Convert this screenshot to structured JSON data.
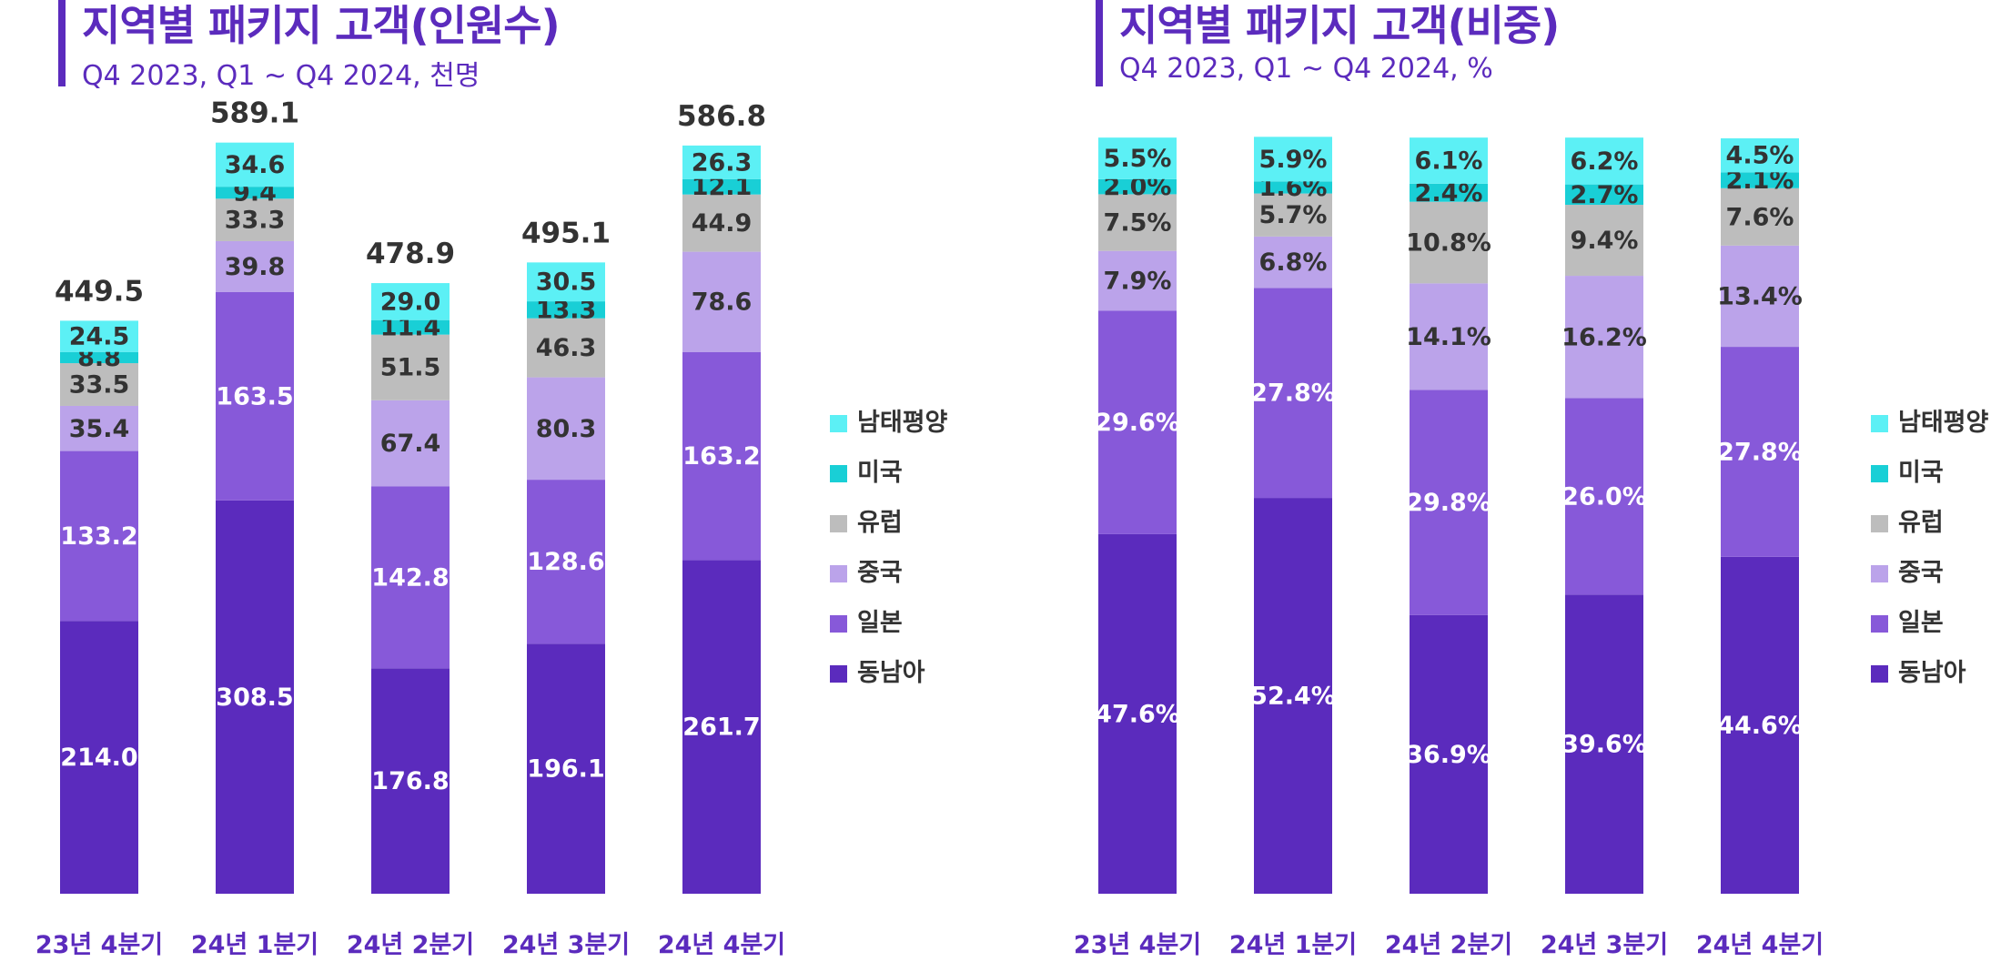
{
  "colors": {
    "동남아": "#5b2bbd",
    "일본": "#8759d9",
    "중국": "#bba3ea",
    "유럽": "#bdbdbd",
    "미국": "#19cfd6",
    "남태평양": "#5cf0f5"
  },
  "legend": [
    "남태평양",
    "미국",
    "유럽",
    "중국",
    "일본",
    "동남아"
  ],
  "chart_data": [
    {
      "type": "bar",
      "stacked": true,
      "title": "지역별 패키지 고객(인원수)",
      "subtitle": "Q4 2023, Q1 ~ Q4 2024, 천명",
      "categories": [
        "23년 4분기",
        "24년 1분기",
        "24년 2분기",
        "24년 3분기",
        "24년 4분기"
      ],
      "totals": [
        "449.5",
        "589.1",
        "478.9",
        "495.1",
        "586.8"
      ],
      "series": [
        {
          "name": "동남아",
          "values": [
            214.0,
            308.5,
            176.8,
            196.1,
            261.7
          ],
          "labels": [
            "214.0",
            "308.5",
            "176.8",
            "196.1",
            "261.7"
          ]
        },
        {
          "name": "일본",
          "values": [
            133.2,
            163.5,
            142.8,
            128.6,
            163.2
          ],
          "labels": [
            "133.2",
            "163.5",
            "142.8",
            "128.6",
            "163.2"
          ]
        },
        {
          "name": "중국",
          "values": [
            35.4,
            39.8,
            67.4,
            80.3,
            78.6
          ],
          "labels": [
            "35.4",
            "39.8",
            "67.4",
            "80.3",
            "78.6"
          ]
        },
        {
          "name": "유럽",
          "values": [
            33.5,
            33.3,
            51.5,
            46.3,
            44.9
          ],
          "labels": [
            "33.5",
            "33.3",
            "51.5",
            "46.3",
            "44.9"
          ]
        },
        {
          "name": "미국",
          "values": [
            8.8,
            9.4,
            11.4,
            13.3,
            12.1
          ],
          "labels": [
            "8.8",
            "9.4",
            "11.4",
            "13.3",
            "12.1"
          ]
        },
        {
          "name": "남태평양",
          "values": [
            24.5,
            34.6,
            29.0,
            30.5,
            26.3
          ],
          "labels": [
            "24.5",
            "34.6",
            "29.0",
            "30.5",
            "26.3"
          ]
        }
      ],
      "ylim": [
        0,
        600
      ],
      "legend_position": "right"
    },
    {
      "type": "bar",
      "stacked": true,
      "title": "지역별 패키지 고객(비중)",
      "subtitle": "Q4 2023, Q1 ~ Q4 2024, %",
      "categories": [
        "23년 4분기",
        "24년 1분기",
        "24년 2분기",
        "24년 3분기",
        "24년 4분기"
      ],
      "series": [
        {
          "name": "동남아",
          "values": [
            47.6,
            52.4,
            36.9,
            39.6,
            44.6
          ],
          "labels": [
            "47.6%",
            "52.4%",
            "36.9%",
            "39.6%",
            "44.6%"
          ]
        },
        {
          "name": "일본",
          "values": [
            29.6,
            27.8,
            29.8,
            26.0,
            27.8
          ],
          "labels": [
            "29.6%",
            "27.8%",
            "29.8%",
            "26.0%",
            "27.8%"
          ]
        },
        {
          "name": "중국",
          "values": [
            7.9,
            6.8,
            14.1,
            16.2,
            13.4
          ],
          "labels": [
            "7.9%",
            "6.8%",
            "14.1%",
            "16.2%",
            "13.4%"
          ]
        },
        {
          "name": "유럽",
          "values": [
            7.5,
            5.7,
            10.8,
            9.4,
            7.6
          ],
          "labels": [
            "7.5%",
            "5.7%",
            "10.8%",
            "9.4%",
            "7.6%"
          ]
        },
        {
          "name": "미국",
          "values": [
            2.0,
            1.6,
            2.4,
            2.7,
            2.1
          ],
          "labels": [
            "2.0%",
            "1.6%",
            "2.4%",
            "2.7%",
            "2.1%"
          ]
        },
        {
          "name": "남태평양",
          "values": [
            5.5,
            5.9,
            6.1,
            6.2,
            4.5
          ],
          "labels": [
            "5.5%",
            "5.9%",
            "6.1%",
            "6.2%",
            "4.5%"
          ]
        }
      ],
      "ylim": [
        0,
        100
      ],
      "legend_position": "right"
    }
  ]
}
